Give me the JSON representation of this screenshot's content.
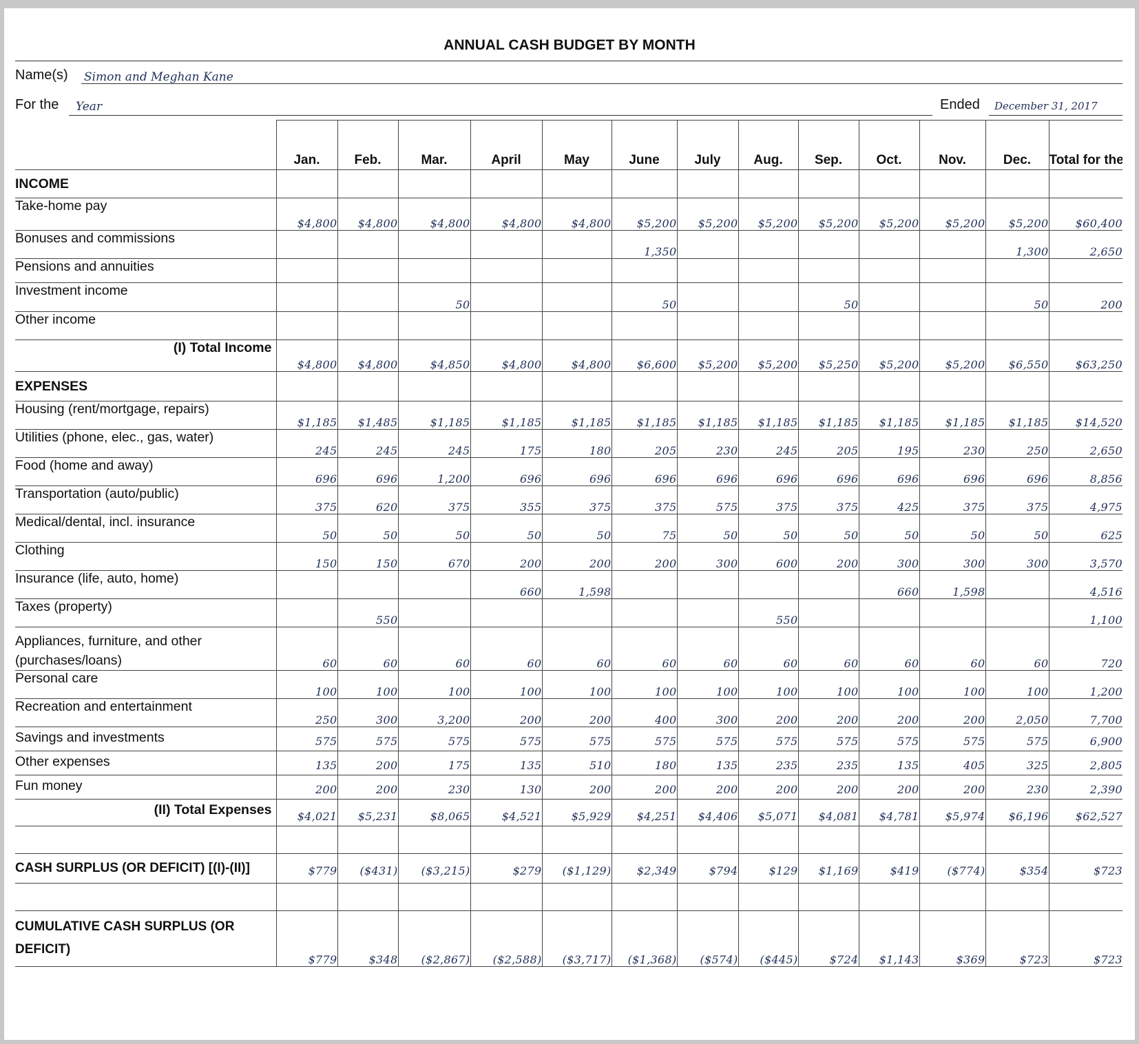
{
  "form": {
    "title": "ANNUAL CASH BUDGET BY MONTH",
    "names_label": "Name(s)",
    "names_value": "Simon and Meghan Kane",
    "for_label": "For the",
    "for_value": "Year",
    "ended_label": "Ended",
    "ended_value": "December 31, 2017"
  },
  "headers": [
    "Jan.",
    "Feb.",
    "Mar.",
    "April",
    "May",
    "June",
    "July",
    "Aug.",
    "Sep.",
    "Oct.",
    "Nov.",
    "Dec.",
    "Total for the Year"
  ],
  "rows": [
    {
      "label": "INCOME",
      "type": "section",
      "values": []
    },
    {
      "label": "Take-home pay",
      "values": [
        "$4,800",
        "$4,800",
        "$4,800",
        "$4,800",
        "$4,800",
        "$5,200",
        "$5,200",
        "$5,200",
        "$5,200",
        "$5,200",
        "$5,200",
        "$5,200",
        "$60,400"
      ]
    },
    {
      "label": "Bonuses and commissions",
      "values": [
        "",
        "",
        "",
        "",
        "",
        "1,350",
        "",
        "",
        "",
        "",
        "",
        "1,300",
        "2,650"
      ]
    },
    {
      "label": "Pensions and annuities",
      "values": [
        "",
        "",
        "",
        "",
        "",
        "",
        "",
        "",
        "",
        "",
        "",
        "",
        ""
      ]
    },
    {
      "label": "Investment income",
      "values": [
        "",
        "",
        "50",
        "",
        "",
        "50",
        "",
        "",
        "50",
        "",
        "",
        "50",
        "200"
      ]
    },
    {
      "label": "Other income",
      "values": [
        "",
        "",
        "",
        "",
        "",
        "",
        "",
        "",
        "",
        "",
        "",
        "",
        ""
      ]
    },
    {
      "label": "(I) Total Income",
      "type": "total",
      "values": [
        "$4,800",
        "$4,800",
        "$4,850",
        "$4,800",
        "$4,800",
        "$6,600",
        "$5,200",
        "$5,200",
        "$5,250",
        "$5,200",
        "$5,200",
        "$6,550",
        "$63,250"
      ]
    },
    {
      "label": "EXPENSES",
      "type": "section",
      "values": []
    },
    {
      "label": "Housing (rent/mortgage, repairs)",
      "values": [
        "$1,185",
        "$1,485",
        "$1,185",
        "$1,185",
        "$1,185",
        "$1,185",
        "$1,185",
        "$1,185",
        "$1,185",
        "$1,185",
        "$1,185",
        "$1,185",
        "$14,520"
      ]
    },
    {
      "label": "Utilities (phone, elec., gas, water)",
      "values": [
        "245",
        "245",
        "245",
        "175",
        "180",
        "205",
        "230",
        "245",
        "205",
        "195",
        "230",
        "250",
        "2,650"
      ]
    },
    {
      "label": "Food (home and away)",
      "values": [
        "696",
        "696",
        "1,200",
        "696",
        "696",
        "696",
        "696",
        "696",
        "696",
        "696",
        "696",
        "696",
        "8,856"
      ]
    },
    {
      "label": "Transportation (auto/public)",
      "values": [
        "375",
        "620",
        "375",
        "355",
        "375",
        "375",
        "575",
        "375",
        "375",
        "425",
        "375",
        "375",
        "4,975"
      ]
    },
    {
      "label": "Medical/dental, incl. insurance",
      "values": [
        "50",
        "50",
        "50",
        "50",
        "50",
        "75",
        "50",
        "50",
        "50",
        "50",
        "50",
        "50",
        "625"
      ]
    },
    {
      "label": "Clothing",
      "values": [
        "150",
        "150",
        "670",
        "200",
        "200",
        "200",
        "300",
        "600",
        "200",
        "300",
        "300",
        "300",
        "3,570"
      ]
    },
    {
      "label": "Insurance (life, auto, home)",
      "values": [
        "",
        "",
        "",
        "660",
        "1,598",
        "",
        "",
        "",
        "",
        "660",
        "1,598",
        "",
        "4,516"
      ]
    },
    {
      "label": "Taxes (property)",
      "values": [
        "",
        "550",
        "",
        "",
        "",
        "",
        "",
        "550",
        "",
        "",
        "",
        "",
        "1,100"
      ]
    },
    {
      "label": "Appliances, furniture, and other (purchases/loans)",
      "type": "two",
      "values": [
        "60",
        "60",
        "60",
        "60",
        "60",
        "60",
        "60",
        "60",
        "60",
        "60",
        "60",
        "60",
        "720"
      ]
    },
    {
      "label": "Personal care",
      "values": [
        "100",
        "100",
        "100",
        "100",
        "100",
        "100",
        "100",
        "100",
        "100",
        "100",
        "100",
        "100",
        "1,200"
      ]
    },
    {
      "label": "Recreation and entertainment",
      "values": [
        "250",
        "300",
        "3,200",
        "200",
        "200",
        "400",
        "300",
        "200",
        "200",
        "200",
        "200",
        "2,050",
        "7,700"
      ]
    },
    {
      "label": "Savings and investments",
      "type": "short",
      "values": [
        "575",
        "575",
        "575",
        "575",
        "575",
        "575",
        "575",
        "575",
        "575",
        "575",
        "575",
        "575",
        "6,900"
      ]
    },
    {
      "label": "Other expenses",
      "type": "short",
      "values": [
        "135",
        "200",
        "175",
        "135",
        "510",
        "180",
        "135",
        "235",
        "235",
        "135",
        "405",
        "325",
        "2,805"
      ]
    },
    {
      "label": "Fun money",
      "type": "short",
      "values": [
        "200",
        "200",
        "230",
        "130",
        "200",
        "200",
        "200",
        "200",
        "200",
        "200",
        "200",
        "230",
        "2,390"
      ]
    },
    {
      "label": "(II) Total Expenses",
      "type": "totalshort",
      "values": [
        "$4,021",
        "$5,231",
        "$8,065",
        "$4,521",
        "$5,929",
        "$4,251",
        "$4,406",
        "$5,071",
        "$4,081",
        "$4,781",
        "$5,974",
        "$6,196",
        "$62,527"
      ]
    },
    {
      "label": "",
      "type": "spacer",
      "values": []
    },
    {
      "label": "CASH SURPLUS (OR DEFICIT) [(I)-(II)]",
      "type": "big",
      "values": [
        "$779",
        "($431)",
        "($3,215)",
        "$279",
        "($1,129)",
        "$2,349",
        "$794",
        "$129",
        "$1,169",
        "$419",
        "($774)",
        "$354",
        "$723"
      ]
    },
    {
      "label": "",
      "type": "spacer",
      "values": []
    },
    {
      "label": "CUMULATIVE CASH SURPLUS (OR DEFICIT)",
      "type": "big2",
      "values": [
        "$779",
        "$348",
        "($2,867)",
        "($2,588)",
        "($3,717)",
        "($1,368)",
        "($574)",
        "($445)",
        "$724",
        "$1,143",
        "$369",
        "$723",
        "$723"
      ]
    }
  ]
}
